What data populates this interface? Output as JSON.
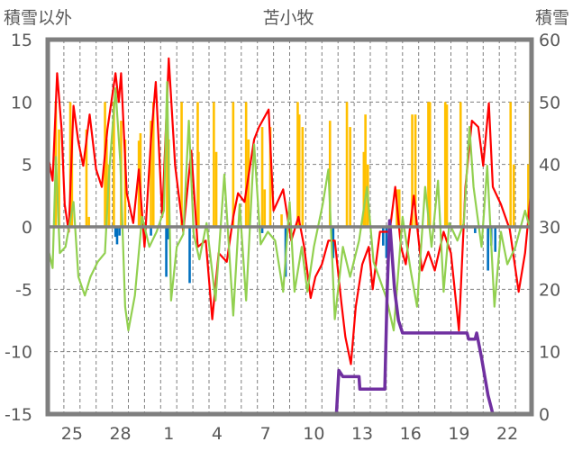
{
  "chart_data": {
    "type": "line",
    "title": "苫小牧",
    "ylabel_left": "積雪以外",
    "ylabel_right": "積雪",
    "ylim_left": [
      -15,
      15
    ],
    "ylim_right": [
      0,
      60
    ],
    "yticks_left": [
      "15",
      "10",
      "5",
      "0",
      "-5",
      "-10",
      "-15"
    ],
    "yticks_left_values": [
      15,
      10,
      5,
      0,
      -5,
      -10,
      -15
    ],
    "yticks_right": [
      "60",
      "50",
      "40",
      "30",
      "20",
      "10",
      "0"
    ],
    "yticks_right_values": [
      60,
      50,
      40,
      30,
      20,
      10,
      0
    ],
    "x_range_days": [
      0,
      30
    ],
    "xticks": [
      {
        "day": 1.5,
        "label": "25"
      },
      {
        "day": 4.5,
        "label": "28"
      },
      {
        "day": 7.5,
        "label": "1"
      },
      {
        "day": 10.5,
        "label": "4"
      },
      {
        "day": 13.5,
        "label": "7"
      },
      {
        "day": 16.5,
        "label": "10"
      },
      {
        "day": 19.5,
        "label": "13"
      },
      {
        "day": 22.5,
        "label": "16"
      },
      {
        "day": 25.5,
        "label": "19"
      },
      {
        "day": 28.5,
        "label": "22"
      }
    ],
    "grid": true,
    "colors": {
      "red": "#ff0000",
      "green": "#92d050",
      "orange": "#ffc000",
      "blue": "#0070c0",
      "purple": "#7030a0",
      "frame": "#7f7f7f"
    },
    "series": [
      {
        "name": "red-line",
        "axis": "left",
        "color": "#ff0000",
        "points": [
          [
            0,
            5.8
          ],
          [
            0.3,
            3.7
          ],
          [
            0.58,
            12.3
          ],
          [
            0.86,
            7.8
          ],
          [
            1.05,
            1.8
          ],
          [
            1.3,
            -0.4
          ],
          [
            1.6,
            9.7
          ],
          [
            1.9,
            6.8
          ],
          [
            2.2,
            4.9
          ],
          [
            2.6,
            9
          ],
          [
            3.0,
            4.6
          ],
          [
            3.35,
            3.2
          ],
          [
            3.7,
            7.8
          ],
          [
            4.2,
            12.3
          ],
          [
            4.4,
            10
          ],
          [
            4.55,
            12.3
          ],
          [
            4.9,
            2.7
          ],
          [
            5.3,
            0.3
          ],
          [
            5.65,
            4.6
          ],
          [
            6.0,
            -1.6
          ],
          [
            6.4,
            7
          ],
          [
            6.7,
            11.6
          ],
          [
            7.1,
            0.8
          ],
          [
            7.5,
            13.5
          ],
          [
            7.9,
            4.9
          ],
          [
            8.4,
            -0.4
          ],
          [
            8.9,
            6.1
          ],
          [
            9.3,
            -1.6
          ],
          [
            9.8,
            -1.1
          ],
          [
            10.2,
            -7.4
          ],
          [
            10.6,
            -2.1
          ],
          [
            11.1,
            -2.8
          ],
          [
            11.5,
            0.8
          ],
          [
            11.8,
            2.7
          ],
          [
            12.2,
            2
          ],
          [
            12.8,
            7
          ],
          [
            13.1,
            8
          ],
          [
            13.7,
            9.4
          ],
          [
            14.0,
            1.3
          ],
          [
            14.6,
            3
          ],
          [
            15.1,
            -1.1
          ],
          [
            15.55,
            0.8
          ],
          [
            15.9,
            -1.6
          ],
          [
            16.3,
            -5.7
          ],
          [
            16.6,
            -4
          ],
          [
            17.0,
            -3
          ],
          [
            17.4,
            -1.1
          ],
          [
            17.8,
            -1.1
          ],
          [
            18.2,
            -6
          ],
          [
            18.45,
            -8.8
          ],
          [
            18.8,
            -11
          ],
          [
            19.1,
            -6.4
          ],
          [
            19.5,
            -3
          ],
          [
            19.9,
            -1.6
          ],
          [
            20.15,
            -5
          ],
          [
            20.6,
            -0.4
          ],
          [
            21.2,
            -0.4
          ],
          [
            21.55,
            3.2
          ],
          [
            21.9,
            -1.6
          ],
          [
            22.2,
            -3
          ],
          [
            22.7,
            2.5
          ],
          [
            23.2,
            -3.5
          ],
          [
            23.6,
            -2
          ],
          [
            24.0,
            -3.5
          ],
          [
            24.55,
            -0.4
          ],
          [
            25.0,
            -2.1
          ],
          [
            25.5,
            -8.3
          ],
          [
            25.9,
            3.2
          ],
          [
            26.3,
            8.5
          ],
          [
            26.7,
            8
          ],
          [
            27.0,
            4.9
          ],
          [
            27.35,
            9.9
          ],
          [
            27.6,
            3.2
          ],
          [
            28.1,
            1.8
          ],
          [
            28.65,
            -0.2
          ],
          [
            29.2,
            -5.2
          ],
          [
            29.6,
            -2.1
          ],
          [
            30,
            3.4
          ]
        ]
      },
      {
        "name": "green-line",
        "axis": "left",
        "color": "#92d050",
        "points": [
          [
            0,
            -1.6
          ],
          [
            0.3,
            -3.3
          ],
          [
            0.5,
            5.6
          ],
          [
            0.75,
            -2.1
          ],
          [
            1.1,
            -1.6
          ],
          [
            1.6,
            2
          ],
          [
            1.9,
            -4
          ],
          [
            2.3,
            -5.5
          ],
          [
            2.65,
            -4
          ],
          [
            3.1,
            -2.8
          ],
          [
            3.55,
            -2.1
          ],
          [
            3.8,
            4.2
          ],
          [
            4.2,
            11.1
          ],
          [
            4.5,
            5.1
          ],
          [
            4.8,
            -6.4
          ],
          [
            5.0,
            -8.3
          ],
          [
            5.4,
            -5.5
          ],
          [
            5.85,
            0.8
          ],
          [
            6.3,
            -1.6
          ],
          [
            6.75,
            -0.4
          ],
          [
            7.2,
            1.3
          ],
          [
            7.4,
            11.6
          ],
          [
            7.65,
            -5.9
          ],
          [
            8.0,
            -1.6
          ],
          [
            8.4,
            -0.6
          ],
          [
            8.75,
            8.5
          ],
          [
            9.05,
            -0.6
          ],
          [
            9.4,
            -2.6
          ],
          [
            9.85,
            0.3
          ],
          [
            10.4,
            -5.9
          ],
          [
            10.95,
            4.2
          ],
          [
            11.5,
            -7.1
          ],
          [
            11.9,
            1.8
          ],
          [
            12.3,
            -5.9
          ],
          [
            12.8,
            6.6
          ],
          [
            13.2,
            -1.4
          ],
          [
            13.65,
            -0.4
          ],
          [
            14.1,
            -1.1
          ],
          [
            14.6,
            -5.2
          ],
          [
            15.0,
            2
          ],
          [
            15.3,
            -5.2
          ],
          [
            15.75,
            -1.6
          ],
          [
            16.1,
            -5.2
          ],
          [
            16.5,
            -1.6
          ],
          [
            17.05,
            1.8
          ],
          [
            17.4,
            4.6
          ],
          [
            17.8,
            -7.4
          ],
          [
            18.3,
            -1.6
          ],
          [
            18.75,
            -4
          ],
          [
            19.3,
            -1.1
          ],
          [
            19.8,
            3.2
          ],
          [
            20.2,
            -2.8
          ],
          [
            21.0,
            -5.7
          ],
          [
            21.45,
            -8.3
          ],
          [
            22.0,
            0.8
          ],
          [
            22.5,
            -3.5
          ],
          [
            22.9,
            -6.4
          ],
          [
            23.4,
            3.2
          ],
          [
            23.8,
            -1.6
          ],
          [
            24.2,
            3.7
          ],
          [
            24.55,
            -5.2
          ],
          [
            24.9,
            0.3
          ],
          [
            25.4,
            -1.1
          ],
          [
            25.8,
            0.3
          ],
          [
            26.15,
            8
          ],
          [
            26.4,
            3.2
          ],
          [
            26.9,
            -1.6
          ],
          [
            27.25,
            4.9
          ],
          [
            27.7,
            -6.4
          ],
          [
            28.1,
            -0.4
          ],
          [
            28.5,
            -3
          ],
          [
            29.0,
            -1.6
          ],
          [
            29.6,
            1.3
          ],
          [
            29.95,
            -0.4
          ],
          [
            30,
            9.2
          ]
        ]
      },
      {
        "name": "snow-depth-line",
        "axis": "right",
        "color": "#7030a0",
        "segments": [
          [
            [
              0,
              0
            ],
            [
              16.6,
              0
            ]
          ],
          [
            [
              17.1,
              0
            ],
            [
              17.9,
              0
            ],
            [
              18.05,
              7
            ],
            [
              18.3,
              6
            ],
            [
              19.3,
              6
            ],
            [
              19.35,
              4
            ],
            [
              20.9,
              4
            ],
            [
              21.05,
              20
            ],
            [
              21.2,
              31
            ],
            [
              21.5,
              20
            ],
            [
              21.75,
              15
            ],
            [
              22.0,
              13
            ],
            [
              26.0,
              13
            ],
            [
              26.1,
              12
            ],
            [
              26.5,
              12
            ],
            [
              26.6,
              13
            ],
            [
              26.9,
              9
            ],
            [
              27.1,
              6
            ],
            [
              27.3,
              3
            ],
            [
              27.5,
              1
            ],
            [
              27.6,
              0
            ],
            [
              30,
              0
            ]
          ]
        ]
      }
    ],
    "bars_positive": {
      "name": "orange-bars",
      "axis": "left",
      "color": "#ffc000",
      "points": [
        [
          0.5,
          10
        ],
        [
          0.7,
          7.8
        ],
        [
          1.4,
          10
        ],
        [
          1.5,
          6.8
        ],
        [
          2.4,
          7.8
        ],
        [
          2.55,
          0.8
        ],
        [
          3.55,
          10
        ],
        [
          3.65,
          7
        ],
        [
          3.8,
          5
        ],
        [
          4.1,
          10
        ],
        [
          4.55,
          8.5
        ],
        [
          4.8,
          7
        ],
        [
          5.65,
          6.9
        ],
        [
          5.75,
          7.5
        ],
        [
          6.4,
          8.5
        ],
        [
          6.55,
          10
        ],
        [
          7.4,
          10
        ],
        [
          7.5,
          7
        ],
        [
          8.3,
          10
        ],
        [
          9.3,
          10
        ],
        [
          9.35,
          6
        ],
        [
          10.3,
          10
        ],
        [
          10.45,
          6
        ],
        [
          11.5,
          10
        ],
        [
          12.3,
          10
        ],
        [
          12.45,
          7
        ],
        [
          13.3,
          8
        ],
        [
          13.45,
          3
        ],
        [
          13.8,
          8
        ],
        [
          14.5,
          1
        ],
        [
          15.5,
          10
        ],
        [
          15.6,
          9
        ],
        [
          15.8,
          8
        ],
        [
          17.5,
          8.5
        ],
        [
          18.55,
          10
        ],
        [
          18.75,
          8
        ],
        [
          19.6,
          6
        ],
        [
          19.7,
          9
        ],
        [
          19.85,
          5
        ],
        [
          21.65,
          3
        ],
        [
          21.8,
          3
        ],
        [
          22.6,
          9
        ],
        [
          22.8,
          9
        ],
        [
          23.6,
          10
        ],
        [
          23.7,
          10
        ],
        [
          24.65,
          10
        ],
        [
          24.75,
          9.8
        ],
        [
          25.6,
          10
        ],
        [
          28.7,
          10
        ],
        [
          28.9,
          5
        ],
        [
          29.8,
          5
        ],
        [
          29.9,
          10
        ]
      ]
    },
    "bars_negative": {
      "name": "blue-bars",
      "axis": "left",
      "color": "#0070c0",
      "points": [
        [
          4.2,
          -0.8
        ],
        [
          4.3,
          -1.4
        ],
        [
          4.45,
          -0.7
        ],
        [
          6.4,
          -0.7
        ],
        [
          7.35,
          -4
        ],
        [
          7.45,
          -1
        ],
        [
          8.8,
          -4.5
        ],
        [
          13.3,
          -0.5
        ],
        [
          14.75,
          -4
        ],
        [
          17.7,
          -2.5
        ],
        [
          20.8,
          -1.5
        ],
        [
          21.0,
          -2.5
        ],
        [
          26.5,
          -0.5
        ],
        [
          27.3,
          -3.5
        ],
        [
          27.5,
          -1.5
        ],
        [
          27.75,
          -2
        ],
        [
          30,
          -0.5
        ]
      ]
    }
  }
}
